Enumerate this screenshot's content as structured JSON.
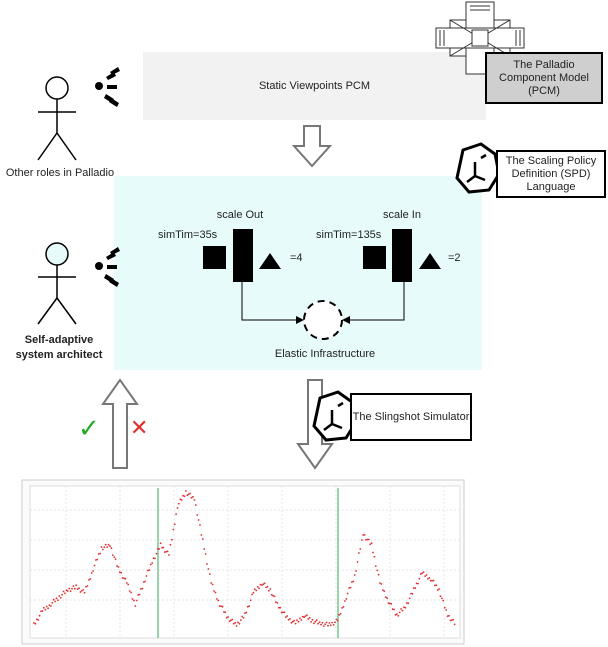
{
  "roles": {
    "other": "Other roles in Palladio",
    "architect": "Self-adaptive system architect"
  },
  "pcm_band": {
    "label": "Static Viewpoints PCM"
  },
  "pcm_callout": {
    "label": "The Palladio Component Model (PCM)"
  },
  "spd_callout": {
    "label": "The Scaling Policy Definition (SPD) Language"
  },
  "slingshot_callout": {
    "label": "The Slingshot Simulator"
  },
  "elastic": {
    "caption": "Elastic Infrastructure",
    "scale_out": {
      "title": "scale Out",
      "time": "simTim=35s",
      "count": "=4"
    },
    "scale_in": {
      "title": "scale In",
      "time": "simTim=135s",
      "count": "=2"
    }
  },
  "feedback": {
    "accept": "✓",
    "reject": "✕"
  },
  "colors": {
    "accent_light": "#e8fbfb",
    "pcm_band": "#f2f2f2",
    "callout_gray": "#cfcfcf",
    "check_green": "#22aa22",
    "cross_red": "#e03030",
    "series_red": "#e03030",
    "marker_green": "#33aa55"
  },
  "chart_data": {
    "type": "scatter",
    "series_color": "#e03030",
    "markers": [
      "scaleOut",
      "scaleIn"
    ],
    "x": [
      0,
      2,
      4,
      6,
      8,
      10,
      12,
      14,
      16,
      18,
      20,
      22,
      24,
      26,
      28,
      30,
      32,
      34,
      36,
      38,
      40,
      42,
      44,
      46,
      48,
      50,
      52,
      54,
      56,
      58,
      60,
      62,
      64,
      66,
      68,
      70,
      72,
      74,
      76,
      78,
      80,
      82,
      84,
      86,
      88,
      90,
      92,
      94,
      96,
      98,
      100
    ],
    "y": [
      0.05,
      0.15,
      0.2,
      0.25,
      0.3,
      0.32,
      0.28,
      0.45,
      0.6,
      0.62,
      0.45,
      0.35,
      0.2,
      0.35,
      0.5,
      0.62,
      0.55,
      0.9,
      1.0,
      0.95,
      0.65,
      0.35,
      0.2,
      0.1,
      0.05,
      0.12,
      0.28,
      0.35,
      0.3,
      0.18,
      0.1,
      0.06,
      0.12,
      0.08,
      0.06,
      0.05,
      0.08,
      0.25,
      0.4,
      0.7,
      0.62,
      0.35,
      0.22,
      0.12,
      0.18,
      0.3,
      0.42,
      0.38,
      0.3,
      0.12,
      0.05
    ]
  }
}
